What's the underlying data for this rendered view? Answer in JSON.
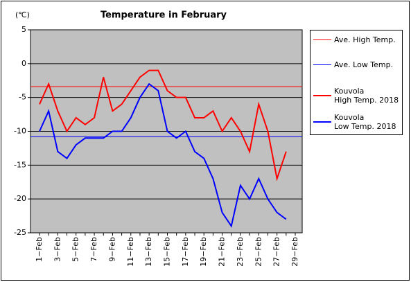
{
  "chart_data": {
    "type": "line",
    "title": "Temperature in February",
    "y_label": "(℃)",
    "categories": [
      "1−Feb",
      null,
      "3−Feb",
      null,
      "5−Feb",
      null,
      "7−Feb",
      null,
      "9−Feb",
      null,
      "11−Feb",
      null,
      "13−Feb",
      null,
      "15−Feb",
      null,
      "17−Feb",
      null,
      "19−Feb",
      null,
      "21−Feb",
      null,
      "23−Feb",
      null,
      "25−Feb",
      null,
      "27−Feb",
      null,
      "29−Feb"
    ],
    "series": [
      {
        "name": "Ave. High Temp.",
        "color": "#ff0000",
        "value": -3.4
      },
      {
        "name": "Ave. Low Temp.",
        "color": "#0000ff",
        "value": -10.8
      },
      {
        "name": "Kouvola\nHigh Temp. 2018",
        "color": "#ff0000",
        "values": [
          -6,
          -3,
          -7,
          -10,
          -8,
          -9,
          -8,
          -2,
          -7,
          -6,
          -4,
          -2,
          -1,
          -1,
          -4,
          -5,
          -5,
          -8,
          -8,
          -7,
          -10,
          -8,
          -10,
          -13,
          -6,
          -10,
          -17,
          -13,
          null
        ]
      },
      {
        "name": "Kouvola\nLow Temp. 2018",
        "color": "#0000ff",
        "values": [
          -10,
          -7,
          -13,
          -14,
          -12,
          -11,
          -11,
          -11,
          -10,
          -10,
          -8,
          -5,
          -3,
          -4,
          -10,
          -11,
          -10,
          -13,
          -14,
          -17,
          -22,
          -24,
          -18,
          -20,
          -17,
          -20,
          -22,
          -23,
          null
        ]
      }
    ],
    "ylim": [
      -25,
      5
    ],
    "yticks": [
      -25,
      -20,
      -15,
      -10,
      -5,
      0,
      5
    ],
    "grid": true
  }
}
